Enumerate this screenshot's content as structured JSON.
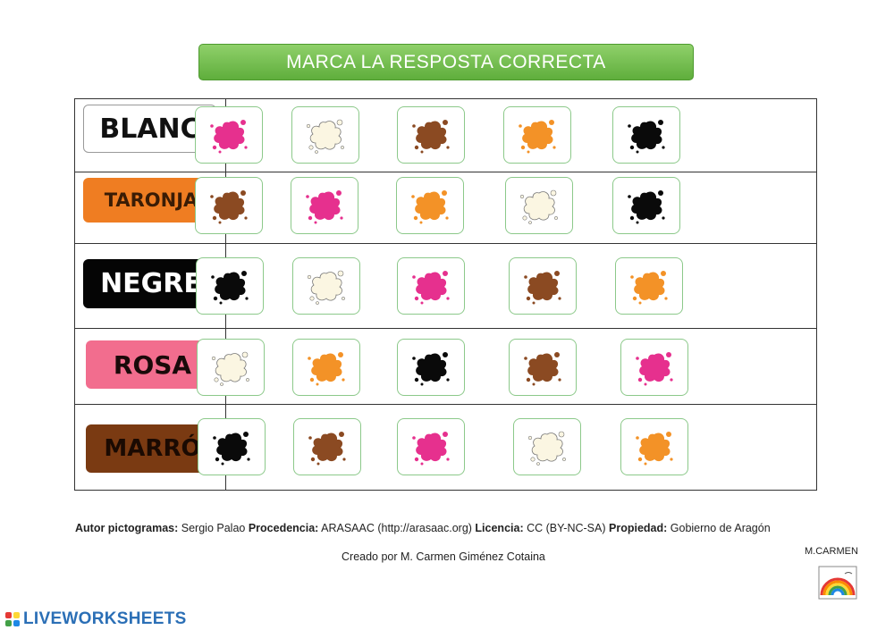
{
  "title": "MARCA LA RESPOSTA CORRECTA",
  "colors": {
    "pink": "#e6308e",
    "cream": "#fbf6e2",
    "brown": "#8b4a22",
    "orange": "#f39227",
    "black": "#0a0a0a",
    "title_green": "#6cbf48",
    "option_border": "#8cc98a"
  },
  "rows": [
    {
      "label": "BLANC",
      "label_bg": "#ffffff",
      "label_fg": "#111111",
      "options": [
        "pink",
        "cream",
        "brown",
        "orange",
        "black"
      ]
    },
    {
      "label": "TARONJA",
      "label_bg": "#ef7d22",
      "label_fg": "#3a1c05",
      "options": [
        "brown",
        "pink",
        "orange",
        "cream",
        "black"
      ]
    },
    {
      "label": "NEGRE",
      "label_bg": "#050505",
      "label_fg": "#ffffff",
      "options": [
        "black",
        "cream",
        "pink",
        "brown",
        "orange"
      ]
    },
    {
      "label": "ROSA",
      "label_bg": "#f26d8e",
      "label_fg": "#1a0a0a",
      "options": [
        "cream",
        "orange",
        "black",
        "brown",
        "pink"
      ]
    },
    {
      "label": "MARRÓ",
      "label_bg": "#7a3a12",
      "label_fg": "#1a0a02",
      "options": [
        "black",
        "brown",
        "pink",
        "cream",
        "orange"
      ]
    }
  ],
  "footer": {
    "k1": "Autor pictogramas:",
    "v1": " Sergio Palao ",
    "k2": "Procedencia:",
    "v2": " ARASAAC (http://arasaac.org) ",
    "k3": "Licencia:",
    "v3": " CC (BY-NC-SA) ",
    "k4": "Propiedad:",
    "v4": " Gobierno de Aragón",
    "created": "Creado por M. Carmen Giménez Cotaina",
    "author": "M.CARMEN"
  },
  "brand": "LIVEWORKSHEETS"
}
